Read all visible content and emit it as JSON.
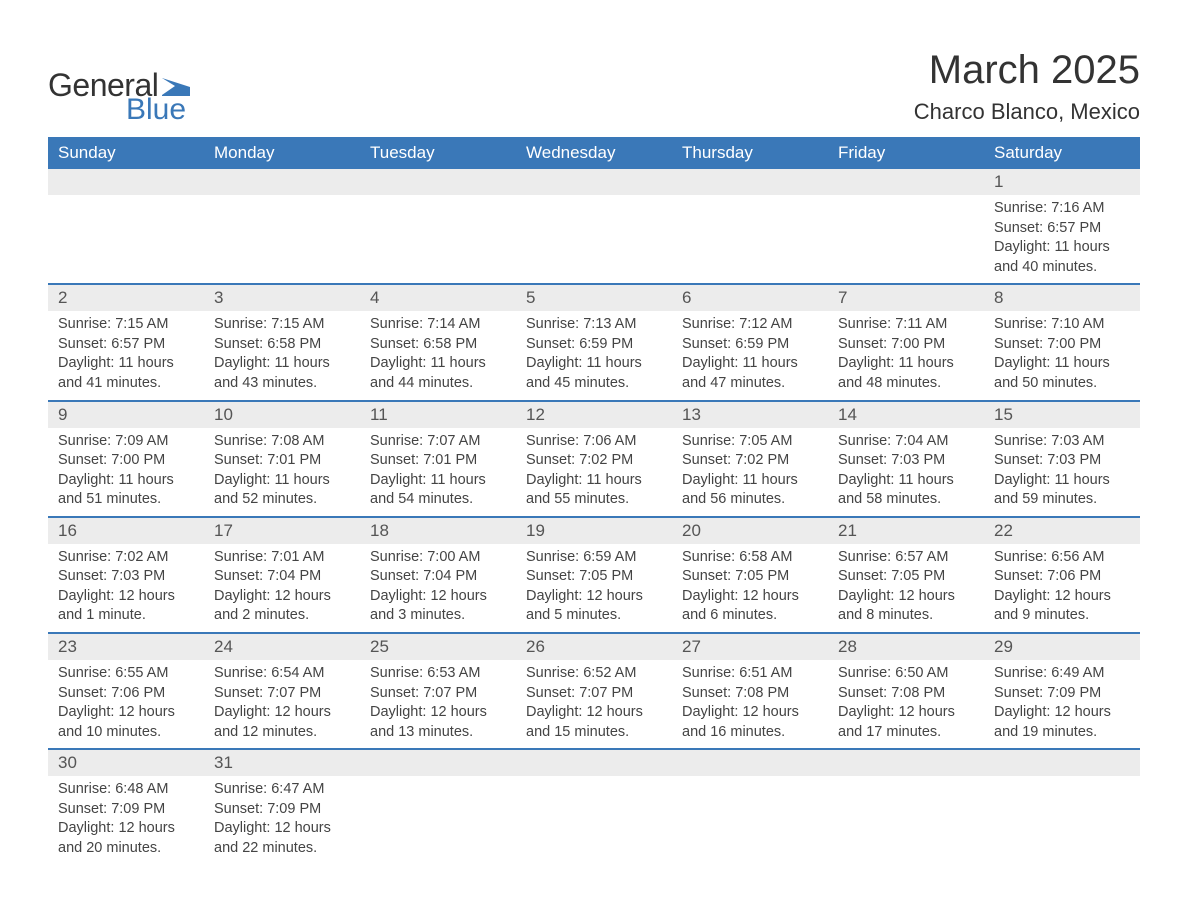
{
  "brand": {
    "word1": "General",
    "word2": "Blue",
    "flag_color": "#3a78b8"
  },
  "title": "March 2025",
  "location": "Charco Blanco, Mexico",
  "colors": {
    "header_bg": "#3a78b8",
    "header_text": "#ffffff",
    "daynum_bg": "#ececec",
    "row_divider": "#3a78b8",
    "text": "#333333"
  },
  "columns": [
    "Sunday",
    "Monday",
    "Tuesday",
    "Wednesday",
    "Thursday",
    "Friday",
    "Saturday"
  ],
  "weeks": [
    [
      {
        "day": "",
        "lines": [
          "",
          "",
          "",
          ""
        ]
      },
      {
        "day": "",
        "lines": [
          "",
          "",
          "",
          ""
        ]
      },
      {
        "day": "",
        "lines": [
          "",
          "",
          "",
          ""
        ]
      },
      {
        "day": "",
        "lines": [
          "",
          "",
          "",
          ""
        ]
      },
      {
        "day": "",
        "lines": [
          "",
          "",
          "",
          ""
        ]
      },
      {
        "day": "",
        "lines": [
          "",
          "",
          "",
          ""
        ]
      },
      {
        "day": "1",
        "lines": [
          "Sunrise: 7:16 AM",
          "Sunset: 6:57 PM",
          "Daylight: 11 hours",
          "and 40 minutes."
        ]
      }
    ],
    [
      {
        "day": "2",
        "lines": [
          "Sunrise: 7:15 AM",
          "Sunset: 6:57 PM",
          "Daylight: 11 hours",
          "and 41 minutes."
        ]
      },
      {
        "day": "3",
        "lines": [
          "Sunrise: 7:15 AM",
          "Sunset: 6:58 PM",
          "Daylight: 11 hours",
          "and 43 minutes."
        ]
      },
      {
        "day": "4",
        "lines": [
          "Sunrise: 7:14 AM",
          "Sunset: 6:58 PM",
          "Daylight: 11 hours",
          "and 44 minutes."
        ]
      },
      {
        "day": "5",
        "lines": [
          "Sunrise: 7:13 AM",
          "Sunset: 6:59 PM",
          "Daylight: 11 hours",
          "and 45 minutes."
        ]
      },
      {
        "day": "6",
        "lines": [
          "Sunrise: 7:12 AM",
          "Sunset: 6:59 PM",
          "Daylight: 11 hours",
          "and 47 minutes."
        ]
      },
      {
        "day": "7",
        "lines": [
          "Sunrise: 7:11 AM",
          "Sunset: 7:00 PM",
          "Daylight: 11 hours",
          "and 48 minutes."
        ]
      },
      {
        "day": "8",
        "lines": [
          "Sunrise: 7:10 AM",
          "Sunset: 7:00 PM",
          "Daylight: 11 hours",
          "and 50 minutes."
        ]
      }
    ],
    [
      {
        "day": "9",
        "lines": [
          "Sunrise: 7:09 AM",
          "Sunset: 7:00 PM",
          "Daylight: 11 hours",
          "and 51 minutes."
        ]
      },
      {
        "day": "10",
        "lines": [
          "Sunrise: 7:08 AM",
          "Sunset: 7:01 PM",
          "Daylight: 11 hours",
          "and 52 minutes."
        ]
      },
      {
        "day": "11",
        "lines": [
          "Sunrise: 7:07 AM",
          "Sunset: 7:01 PM",
          "Daylight: 11 hours",
          "and 54 minutes."
        ]
      },
      {
        "day": "12",
        "lines": [
          "Sunrise: 7:06 AM",
          "Sunset: 7:02 PM",
          "Daylight: 11 hours",
          "and 55 minutes."
        ]
      },
      {
        "day": "13",
        "lines": [
          "Sunrise: 7:05 AM",
          "Sunset: 7:02 PM",
          "Daylight: 11 hours",
          "and 56 minutes."
        ]
      },
      {
        "day": "14",
        "lines": [
          "Sunrise: 7:04 AM",
          "Sunset: 7:03 PM",
          "Daylight: 11 hours",
          "and 58 minutes."
        ]
      },
      {
        "day": "15",
        "lines": [
          "Sunrise: 7:03 AM",
          "Sunset: 7:03 PM",
          "Daylight: 11 hours",
          "and 59 minutes."
        ]
      }
    ],
    [
      {
        "day": "16",
        "lines": [
          "Sunrise: 7:02 AM",
          "Sunset: 7:03 PM",
          "Daylight: 12 hours",
          "and 1 minute."
        ]
      },
      {
        "day": "17",
        "lines": [
          "Sunrise: 7:01 AM",
          "Sunset: 7:04 PM",
          "Daylight: 12 hours",
          "and 2 minutes."
        ]
      },
      {
        "day": "18",
        "lines": [
          "Sunrise: 7:00 AM",
          "Sunset: 7:04 PM",
          "Daylight: 12 hours",
          "and 3 minutes."
        ]
      },
      {
        "day": "19",
        "lines": [
          "Sunrise: 6:59 AM",
          "Sunset: 7:05 PM",
          "Daylight: 12 hours",
          "and 5 minutes."
        ]
      },
      {
        "day": "20",
        "lines": [
          "Sunrise: 6:58 AM",
          "Sunset: 7:05 PM",
          "Daylight: 12 hours",
          "and 6 minutes."
        ]
      },
      {
        "day": "21",
        "lines": [
          "Sunrise: 6:57 AM",
          "Sunset: 7:05 PM",
          "Daylight: 12 hours",
          "and 8 minutes."
        ]
      },
      {
        "day": "22",
        "lines": [
          "Sunrise: 6:56 AM",
          "Sunset: 7:06 PM",
          "Daylight: 12 hours",
          "and 9 minutes."
        ]
      }
    ],
    [
      {
        "day": "23",
        "lines": [
          "Sunrise: 6:55 AM",
          "Sunset: 7:06 PM",
          "Daylight: 12 hours",
          "and 10 minutes."
        ]
      },
      {
        "day": "24",
        "lines": [
          "Sunrise: 6:54 AM",
          "Sunset: 7:07 PM",
          "Daylight: 12 hours",
          "and 12 minutes."
        ]
      },
      {
        "day": "25",
        "lines": [
          "Sunrise: 6:53 AM",
          "Sunset: 7:07 PM",
          "Daylight: 12 hours",
          "and 13 minutes."
        ]
      },
      {
        "day": "26",
        "lines": [
          "Sunrise: 6:52 AM",
          "Sunset: 7:07 PM",
          "Daylight: 12 hours",
          "and 15 minutes."
        ]
      },
      {
        "day": "27",
        "lines": [
          "Sunrise: 6:51 AM",
          "Sunset: 7:08 PM",
          "Daylight: 12 hours",
          "and 16 minutes."
        ]
      },
      {
        "day": "28",
        "lines": [
          "Sunrise: 6:50 AM",
          "Sunset: 7:08 PM",
          "Daylight: 12 hours",
          "and 17 minutes."
        ]
      },
      {
        "day": "29",
        "lines": [
          "Sunrise: 6:49 AM",
          "Sunset: 7:09 PM",
          "Daylight: 12 hours",
          "and 19 minutes."
        ]
      }
    ],
    [
      {
        "day": "30",
        "lines": [
          "Sunrise: 6:48 AM",
          "Sunset: 7:09 PM",
          "Daylight: 12 hours",
          "and 20 minutes."
        ]
      },
      {
        "day": "31",
        "lines": [
          "Sunrise: 6:47 AM",
          "Sunset: 7:09 PM",
          "Daylight: 12 hours",
          "and 22 minutes."
        ]
      },
      {
        "day": "",
        "lines": [
          "",
          "",
          "",
          ""
        ]
      },
      {
        "day": "",
        "lines": [
          "",
          "",
          "",
          ""
        ]
      },
      {
        "day": "",
        "lines": [
          "",
          "",
          "",
          ""
        ]
      },
      {
        "day": "",
        "lines": [
          "",
          "",
          "",
          ""
        ]
      },
      {
        "day": "",
        "lines": [
          "",
          "",
          "",
          ""
        ]
      }
    ]
  ]
}
